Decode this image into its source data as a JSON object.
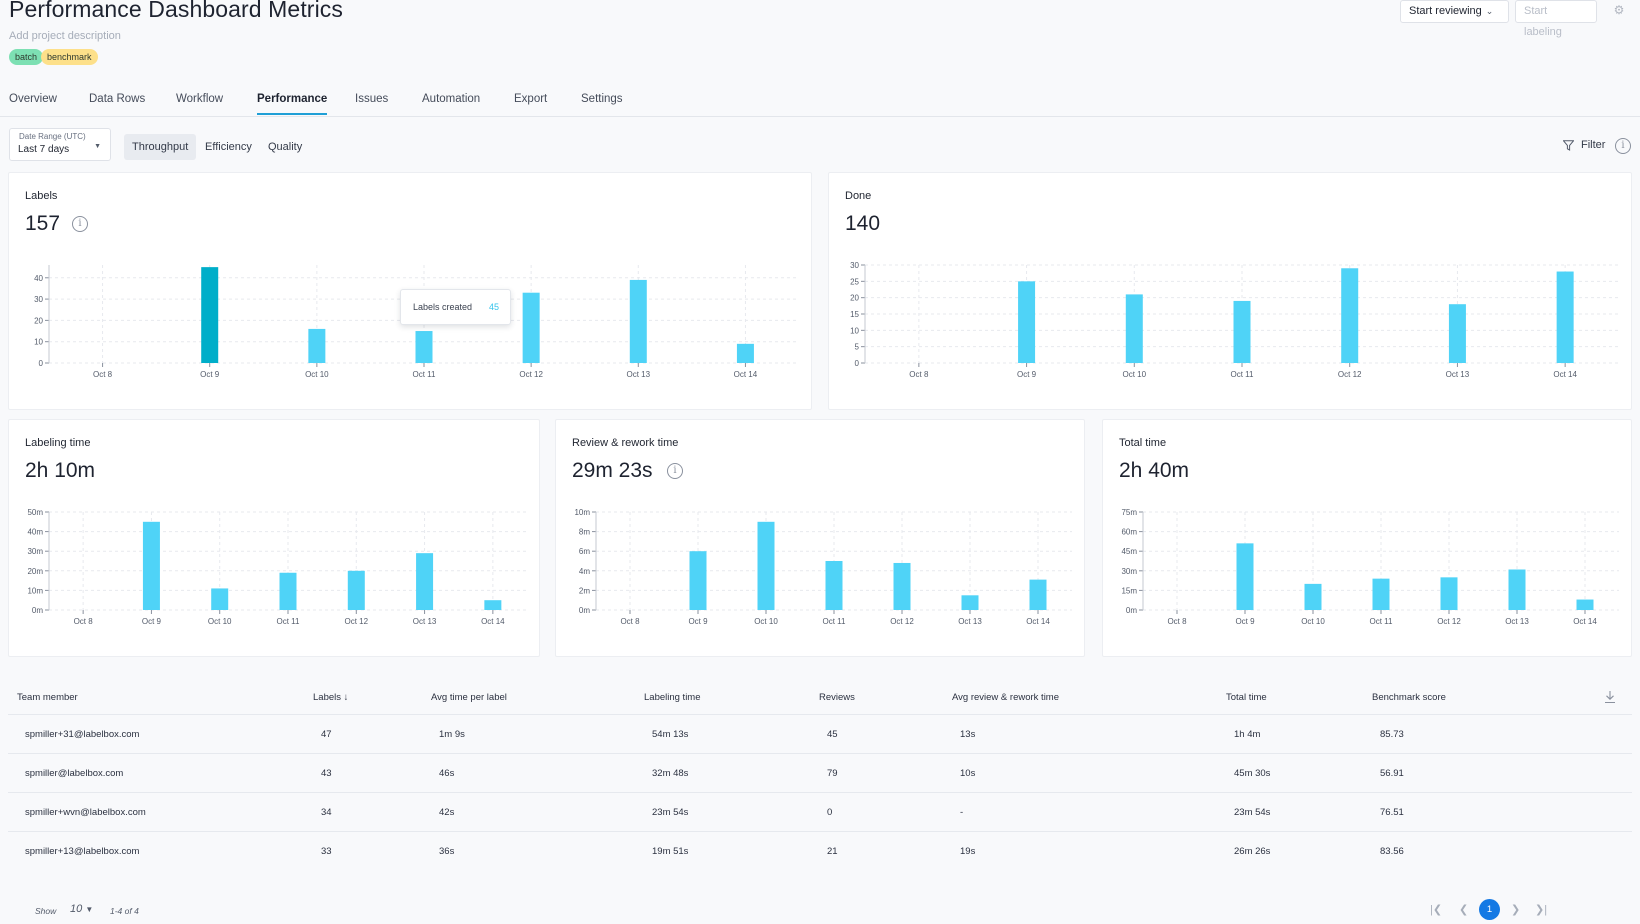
{
  "header": {
    "title": "Performance Dashboard Metrics",
    "description_placeholder": "Add project description",
    "tags": [
      "batch",
      "benchmark"
    ],
    "start_reviewing": "Start reviewing",
    "start_labeling": "Start labeling",
    "gear_icon": "gear-icon"
  },
  "tabs": [
    "Overview",
    "Data Rows",
    "Workflow",
    "Performance",
    "Issues",
    "Automation",
    "Export",
    "Settings"
  ],
  "active_tab": "Performance",
  "toolbar": {
    "date_range_label": "Date Range (UTC)",
    "date_range_value": "Last 7 days",
    "segments": [
      "Throughput",
      "Efficiency",
      "Quality"
    ],
    "active_segment": "Throughput",
    "filter_label": "Filter",
    "filter_icon": "filter-icon",
    "info_icon": "info-icon"
  },
  "colors": {
    "bar": "#4fd3f7",
    "bar_active": "#00aec9",
    "accent": "#1f9fd6",
    "page_current": "#1479e4"
  },
  "tooltip": {
    "label": "Labels created",
    "value": "45"
  },
  "chart_data": [
    {
      "type": "bar",
      "title": "Labels",
      "summary": "157",
      "categories": [
        "Oct 8",
        "Oct 9",
        "Oct 10",
        "Oct 11",
        "Oct 12",
        "Oct 13",
        "Oct 14"
      ],
      "values": [
        0,
        45,
        16,
        15,
        33,
        39,
        9
      ],
      "yticks": [
        "0",
        "10",
        "20",
        "30",
        "40"
      ],
      "ylim": [
        0,
        46
      ],
      "grid": true,
      "highlight_index": 1
    },
    {
      "type": "bar",
      "title": "Done",
      "summary": "140",
      "categories": [
        "Oct 8",
        "Oct 9",
        "Oct 10",
        "Oct 11",
        "Oct 12",
        "Oct 13",
        "Oct 14"
      ],
      "values": [
        0,
        25,
        21,
        19,
        29,
        18,
        28
      ],
      "yticks": [
        "0",
        "5",
        "10",
        "15",
        "20",
        "25",
        "30"
      ],
      "ylim": [
        0,
        30
      ],
      "grid": true
    },
    {
      "type": "bar",
      "title": "Labeling time",
      "summary": "2h 10m",
      "categories": [
        "Oct 8",
        "Oct 9",
        "Oct 10",
        "Oct 11",
        "Oct 12",
        "Oct 13",
        "Oct 14"
      ],
      "values": [
        0,
        45,
        11,
        19,
        20,
        29,
        5
      ],
      "yticks": [
        "0m",
        "10m",
        "20m",
        "30m",
        "40m",
        "50m"
      ],
      "ylim": [
        0,
        50
      ],
      "grid": true
    },
    {
      "type": "bar",
      "title": "Review & rework time",
      "summary": "29m 23s",
      "categories": [
        "Oct 8",
        "Oct 9",
        "Oct 10",
        "Oct 11",
        "Oct 12",
        "Oct 13",
        "Oct 14"
      ],
      "values": [
        0,
        6,
        9,
        5,
        4.8,
        1.5,
        3.1
      ],
      "yticks": [
        "0m",
        "2m",
        "4m",
        "6m",
        "8m",
        "10m"
      ],
      "ylim": [
        0,
        10
      ],
      "grid": true
    },
    {
      "type": "bar",
      "title": "Total time",
      "summary": "2h 40m",
      "categories": [
        "Oct 8",
        "Oct 9",
        "Oct 10",
        "Oct 11",
        "Oct 12",
        "Oct 13",
        "Oct 14"
      ],
      "values": [
        0,
        51,
        20,
        24,
        25,
        31,
        8
      ],
      "yticks": [
        "0m",
        "15m",
        "30m",
        "45m",
        "60m",
        "75m"
      ],
      "ylim": [
        0,
        75
      ],
      "grid": true
    }
  ],
  "table": {
    "columns": [
      "Team member",
      "Labels",
      "Avg time per label",
      "Labeling time",
      "Reviews",
      "Avg review & rework time",
      "Total time",
      "Benchmark score"
    ],
    "sort_icon": "arrow-down-icon",
    "download_icon": "download-icon",
    "rows": [
      [
        "spmiller+31@labelbox.com",
        "47",
        "1m 9s",
        "54m 13s",
        "45",
        "13s",
        "1h 4m",
        "85.73"
      ],
      [
        "spmiller@labelbox.com",
        "43",
        "46s",
        "32m 48s",
        "79",
        "10s",
        "45m 30s",
        "56.91"
      ],
      [
        "spmiller+wvn@labelbox.com",
        "34",
        "42s",
        "23m 54s",
        "0",
        "-",
        "23m 54s",
        "76.51"
      ],
      [
        "spmiller+13@labelbox.com",
        "33",
        "36s",
        "19m 51s",
        "21",
        "19s",
        "26m 26s",
        "83.56"
      ]
    ]
  },
  "pagination": {
    "show_label": "Show",
    "page_size": "10",
    "range": "1-4 of 4",
    "current_page": "1"
  }
}
